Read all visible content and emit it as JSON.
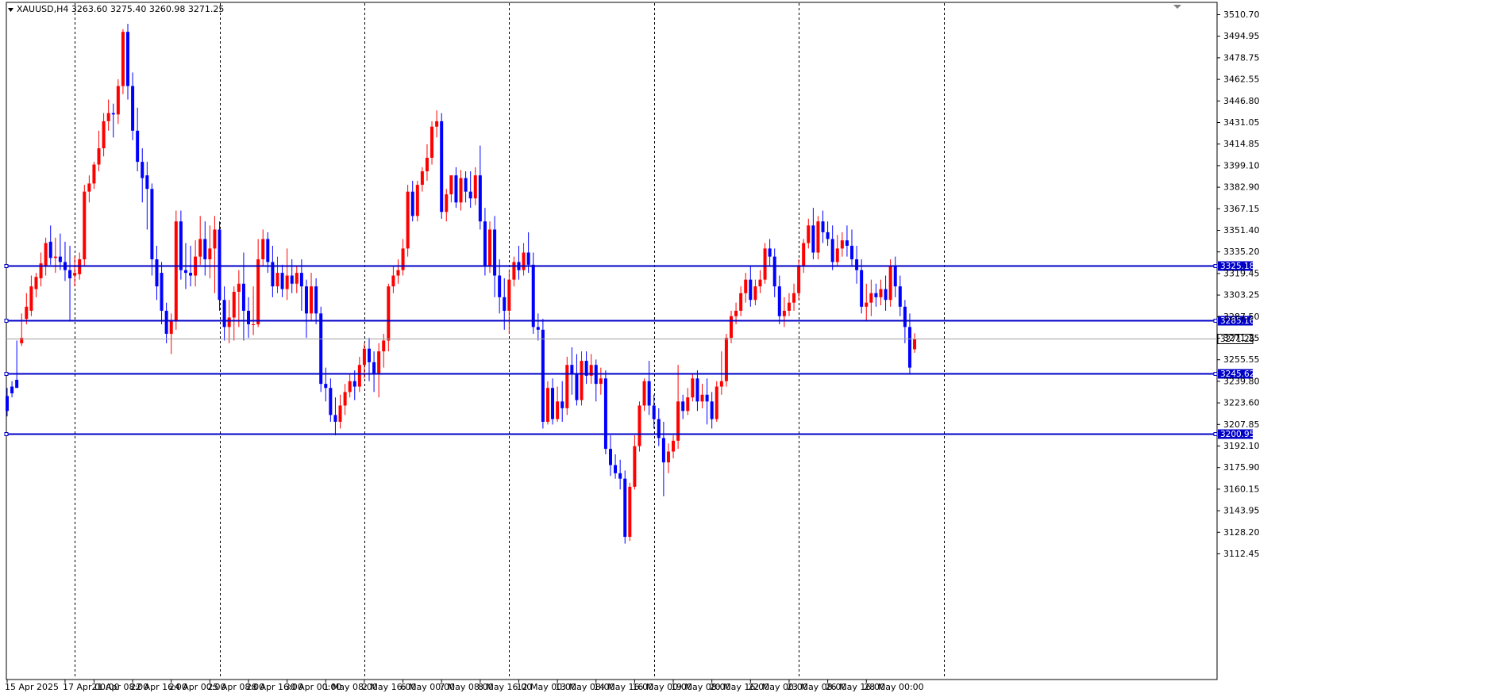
{
  "chart_data": {
    "type": "candlestick",
    "title": "XAUUSD,H4  3263.60 3275.40 3260.98 3271.25",
    "ylim": [
      3105.0,
      3518.5
    ],
    "y_ticks": [
      "3510.70",
      "3494.95",
      "3478.75",
      "3462.55",
      "3446.80",
      "3431.05",
      "3414.85",
      "3399.10",
      "3382.90",
      "3367.15",
      "3351.40",
      "3335.20",
      "3319.45",
      "3303.25",
      "3287.50",
      "3271.25",
      "3255.55",
      "3239.80",
      "3223.60",
      "3207.85",
      "3192.10",
      "3175.90",
      "3160.15",
      "3143.95",
      "3128.20",
      "3112.45"
    ],
    "x_labels": [
      {
        "label": "15 Apr 2025",
        "bar": 0
      },
      {
        "label": "17 Apr 00:00",
        "bar": 12
      },
      {
        "label": "21 Apr 08:00",
        "bar": 18
      },
      {
        "label": "22 Apr 16:00",
        "bar": 26
      },
      {
        "label": "24 Apr 00:00",
        "bar": 34
      },
      {
        "label": "25 Apr 08:00",
        "bar": 42
      },
      {
        "label": "28 Apr 16:00",
        "bar": 50
      },
      {
        "label": "30 Apr 00:00",
        "bar": 58
      },
      {
        "label": "1 May 08:00",
        "bar": 66
      },
      {
        "label": "2 May 16:00",
        "bar": 74
      },
      {
        "label": "6 May 00:00",
        "bar": 82
      },
      {
        "label": "7 May 08:00",
        "bar": 90
      },
      {
        "label": "8 May 16:00",
        "bar": 98
      },
      {
        "label": "12 May 00:00",
        "bar": 106
      },
      {
        "label": "13 May 08:00",
        "bar": 114
      },
      {
        "label": "14 May 16:00",
        "bar": 122
      },
      {
        "label": "16 May 00:00",
        "bar": 130
      },
      {
        "label": "19 May 08:00",
        "bar": 138
      },
      {
        "label": "20 May 16:00",
        "bar": 146
      },
      {
        "label": "22 May 00:00",
        "bar": 154
      },
      {
        "label": "23 May 08:00",
        "bar": 162
      },
      {
        "label": "26 May 16:00",
        "bar": 170
      },
      {
        "label": "28 May 00:00",
        "bar": 178
      }
    ],
    "separators_at_bar": [
      14,
      44,
      74,
      104,
      134,
      164,
      194
    ],
    "horizontal_lines": [
      {
        "value": 3325.18,
        "label": "3325.18"
      },
      {
        "value": 3285.16,
        "label": "3285.16"
      },
      {
        "value": 3245.62,
        "label": "3245.62"
      },
      {
        "value": 3200.95,
        "label": "3200.95"
      }
    ],
    "current_price": {
      "value": 3271.25,
      "label": "3271.25"
    },
    "colors": {
      "bull": "#ff0000",
      "bear": "#0000ff",
      "hline": "#0000c8",
      "grid": "#000000"
    },
    "candles": [
      [
        3229,
        3235,
        3218,
        3214
      ],
      [
        3236,
        3240,
        3231,
        3228
      ],
      [
        3241,
        3270,
        3235,
        3238
      ],
      [
        3268,
        3290,
        3272,
        3266
      ],
      [
        3286,
        3305,
        3295,
        3282
      ],
      [
        3292,
        3318,
        3310,
        3288
      ],
      [
        3308,
        3320,
        3317,
        3302
      ],
      [
        3316,
        3335,
        3327,
        3310
      ],
      [
        3325,
        3346,
        3342,
        3318
      ],
      [
        3343,
        3355,
        3331,
        3326
      ],
      [
        3331,
        3346,
        3332,
        3320
      ],
      [
        3332,
        3349,
        3328,
        3322
      ],
      [
        3328,
        3343,
        3322,
        3314
      ],
      [
        3322,
        3340,
        3316,
        3285
      ],
      [
        3318,
        3332,
        3320,
        3310
      ],
      [
        3319,
        3335,
        3330,
        3315
      ],
      [
        3330,
        3385,
        3380,
        3325
      ],
      [
        3380,
        3392,
        3386,
        3372
      ],
      [
        3386,
        3402,
        3400,
        3382
      ],
      [
        3400,
        3425,
        3412,
        3395
      ],
      [
        3412,
        3438,
        3432,
        3406
      ],
      [
        3432,
        3448,
        3438,
        3425
      ],
      [
        3438,
        3445,
        3437,
        3420
      ],
      [
        3437,
        3463,
        3458,
        3430
      ],
      [
        3458,
        3500,
        3498,
        3452
      ],
      [
        3498,
        3504,
        3458,
        3448
      ],
      [
        3458,
        3468,
        3425,
        3418
      ],
      [
        3425,
        3442,
        3402,
        3395
      ],
      [
        3402,
        3412,
        3390,
        3372
      ],
      [
        3392,
        3402,
        3382,
        3352
      ],
      [
        3382,
        3386,
        3330,
        3318
      ],
      [
        3330,
        3340,
        3310,
        3300
      ],
      [
        3320,
        3328,
        3292,
        3282
      ],
      [
        3292,
        3298,
        3275,
        3268
      ],
      [
        3275,
        3290,
        3285,
        3260
      ],
      [
        3285,
        3366,
        3358,
        3278
      ],
      [
        3358,
        3366,
        3322,
        3315
      ],
      [
        3322,
        3342,
        3320,
        3308
      ],
      [
        3320,
        3340,
        3318,
        3310
      ],
      [
        3318,
        3344,
        3332,
        3310
      ],
      [
        3332,
        3362,
        3345,
        3326
      ],
      [
        3345,
        3358,
        3330,
        3318
      ],
      [
        3330,
        3355,
        3338,
        3316
      ],
      [
        3338,
        3362,
        3352,
        3305
      ],
      [
        3352,
        3358,
        3300,
        3292
      ],
      [
        3300,
        3310,
        3280,
        3270
      ],
      [
        3280,
        3300,
        3287,
        3268
      ],
      [
        3287,
        3310,
        3306,
        3270
      ],
      [
        3306,
        3322,
        3312,
        3280
      ],
      [
        3312,
        3335,
        3292,
        3270
      ],
      [
        3292,
        3302,
        3282,
        3272
      ],
      [
        3282,
        3310,
        3282,
        3274
      ],
      [
        3282,
        3345,
        3330,
        3280
      ],
      [
        3330,
        3352,
        3345,
        3325
      ],
      [
        3345,
        3350,
        3328,
        3320
      ],
      [
        3328,
        3340,
        3310,
        3302
      ],
      [
        3310,
        3332,
        3320,
        3305
      ],
      [
        3320,
        3326,
        3308,
        3302
      ],
      [
        3308,
        3338,
        3318,
        3300
      ],
      [
        3318,
        3330,
        3312,
        3305
      ],
      [
        3312,
        3325,
        3320,
        3305
      ],
      [
        3320,
        3330,
        3310,
        3292
      ],
      [
        3310,
        3315,
        3290,
        3272
      ],
      [
        3290,
        3320,
        3310,
        3285
      ],
      [
        3310,
        3316,
        3290,
        3282
      ],
      [
        3290,
        3295,
        3238,
        3232
      ],
      [
        3238,
        3250,
        3235,
        3225
      ],
      [
        3235,
        3242,
        3215,
        3210
      ],
      [
        3215,
        3228,
        3210,
        3200
      ],
      [
        3210,
        3230,
        3222,
        3205
      ],
      [
        3222,
        3238,
        3232,
        3215
      ],
      [
        3232,
        3245,
        3240,
        3228
      ],
      [
        3240,
        3248,
        3236,
        3226
      ],
      [
        3236,
        3258,
        3252,
        3232
      ],
      [
        3252,
        3268,
        3264,
        3242
      ],
      [
        3264,
        3272,
        3254,
        3240
      ],
      [
        3254,
        3262,
        3246,
        3232
      ],
      [
        3246,
        3268,
        3262,
        3228
      ],
      [
        3262,
        3275,
        3270,
        3250
      ],
      [
        3270,
        3312,
        3310,
        3262
      ],
      [
        3310,
        3325,
        3318,
        3305
      ],
      [
        3318,
        3330,
        3322,
        3312
      ],
      [
        3322,
        3345,
        3338,
        3318
      ],
      [
        3338,
        3385,
        3380,
        3332
      ],
      [
        3380,
        3388,
        3362,
        3358
      ],
      [
        3362,
        3388,
        3385,
        3358
      ],
      [
        3385,
        3398,
        3395,
        3380
      ],
      [
        3395,
        3415,
        3405,
        3388
      ],
      [
        3405,
        3432,
        3428,
        3400
      ],
      [
        3428,
        3440,
        3432,
        3420
      ],
      [
        3432,
        3438,
        3365,
        3360
      ],
      [
        3365,
        3382,
        3378,
        3358
      ],
      [
        3378,
        3392,
        3392,
        3372
      ],
      [
        3392,
        3398,
        3372,
        3368
      ],
      [
        3372,
        3396,
        3390,
        3366
      ],
      [
        3390,
        3395,
        3380,
        3372
      ],
      [
        3380,
        3395,
        3375,
        3368
      ],
      [
        3375,
        3398,
        3392,
        3370
      ],
      [
        3392,
        3414,
        3358,
        3352
      ],
      [
        3358,
        3368,
        3325,
        3318
      ],
      [
        3325,
        3358,
        3352,
        3320
      ],
      [
        3352,
        3362,
        3318,
        3302
      ],
      [
        3318,
        3330,
        3302,
        3290
      ],
      [
        3302,
        3316,
        3292,
        3278
      ],
      [
        3292,
        3322,
        3315,
        3275
      ],
      [
        3315,
        3332,
        3328,
        3310
      ],
      [
        3328,
        3340,
        3322,
        3315
      ],
      [
        3322,
        3342,
        3335,
        3318
      ],
      [
        3335,
        3350,
        3326,
        3320
      ],
      [
        3326,
        3335,
        3280,
        3275
      ],
      [
        3280,
        3290,
        3278,
        3270
      ],
      [
        3278,
        3286,
        3210,
        3205
      ],
      [
        3210,
        3240,
        3235,
        3208
      ],
      [
        3235,
        3242,
        3212,
        3208
      ],
      [
        3212,
        3236,
        3225,
        3210
      ],
      [
        3225,
        3240,
        3220,
        3210
      ],
      [
        3220,
        3258,
        3252,
        3215
      ],
      [
        3252,
        3265,
        3245,
        3230
      ],
      [
        3245,
        3260,
        3226,
        3222
      ],
      [
        3226,
        3262,
        3255,
        3222
      ],
      [
        3255,
        3262,
        3244,
        3238
      ],
      [
        3244,
        3260,
        3252,
        3238
      ],
      [
        3252,
        3256,
        3238,
        3225
      ],
      [
        3238,
        3250,
        3242,
        3230
      ],
      [
        3242,
        3248,
        3190,
        3186
      ],
      [
        3190,
        3200,
        3178,
        3170
      ],
      [
        3178,
        3186,
        3172,
        3168
      ],
      [
        3172,
        3182,
        3168,
        3160
      ],
      [
        3168,
        3174,
        3125,
        3120
      ],
      [
        3125,
        3165,
        3162,
        3122
      ],
      [
        3162,
        3200,
        3192,
        3160
      ],
      [
        3192,
        3225,
        3222,
        3188
      ],
      [
        3222,
        3242,
        3240,
        3218
      ],
      [
        3240,
        3255,
        3222,
        3215
      ],
      [
        3222,
        3230,
        3212,
        3205
      ],
      [
        3212,
        3220,
        3198,
        3192
      ],
      [
        3198,
        3210,
        3180,
        3155
      ],
      [
        3180,
        3194,
        3188,
        3172
      ],
      [
        3188,
        3200,
        3196,
        3183
      ],
      [
        3196,
        3252,
        3225,
        3190
      ],
      [
        3225,
        3230,
        3218,
        3212
      ],
      [
        3218,
        3235,
        3228,
        3215
      ],
      [
        3228,
        3246,
        3242,
        3225
      ],
      [
        3242,
        3248,
        3225,
        3218
      ],
      [
        3225,
        3238,
        3230,
        3220
      ],
      [
        3230,
        3242,
        3225,
        3208
      ],
      [
        3225,
        3232,
        3212,
        3205
      ],
      [
        3212,
        3240,
        3236,
        3210
      ],
      [
        3236,
        3262,
        3240,
        3230
      ],
      [
        3240,
        3275,
        3272,
        3236
      ],
      [
        3272,
        3292,
        3288,
        3268
      ],
      [
        3288,
        3298,
        3292,
        3282
      ],
      [
        3292,
        3310,
        3305,
        3288
      ],
      [
        3305,
        3320,
        3315,
        3298
      ],
      [
        3315,
        3325,
        3300,
        3295
      ],
      [
        3300,
        3315,
        3310,
        3296
      ],
      [
        3310,
        3322,
        3315,
        3305
      ],
      [
        3315,
        3342,
        3338,
        3312
      ],
      [
        3338,
        3345,
        3332,
        3325
      ],
      [
        3332,
        3338,
        3310,
        3302
      ],
      [
        3310,
        3318,
        3288,
        3282
      ],
      [
        3288,
        3302,
        3292,
        3280
      ],
      [
        3292,
        3305,
        3298,
        3288
      ],
      [
        3298,
        3312,
        3305,
        3292
      ],
      [
        3305,
        3330,
        3325,
        3300
      ],
      [
        3325,
        3345,
        3342,
        3320
      ],
      [
        3342,
        3360,
        3355,
        3338
      ],
      [
        3355,
        3368,
        3335,
        3330
      ],
      [
        3335,
        3362,
        3358,
        3330
      ],
      [
        3358,
        3366,
        3350,
        3342
      ],
      [
        3350,
        3358,
        3345,
        3340
      ],
      [
        3345,
        3355,
        3328,
        3322
      ],
      [
        3328,
        3348,
        3338,
        3325
      ],
      [
        3338,
        3350,
        3344,
        3332
      ],
      [
        3344,
        3355,
        3340,
        3332
      ],
      [
        3340,
        3352,
        3330,
        3325
      ],
      [
        3330,
        3340,
        3322,
        3312
      ],
      [
        3322,
        3330,
        3295,
        3290
      ],
      [
        3295,
        3312,
        3298,
        3285
      ],
      [
        3298,
        3315,
        3305,
        3288
      ],
      [
        3305,
        3312,
        3302,
        3295
      ],
      [
        3302,
        3315,
        3308,
        3296
      ],
      [
        3308,
        3318,
        3300,
        3292
      ],
      [
        3300,
        3330,
        3325,
        3295
      ],
      [
        3325,
        3332,
        3310,
        3302
      ],
      [
        3310,
        3318,
        3295,
        3288
      ],
      [
        3295,
        3300,
        3280,
        3268
      ],
      [
        3280,
        3290,
        3250,
        3246
      ],
      [
        3263.6,
        3275.4,
        3271.25,
        3260.98
      ]
    ]
  }
}
